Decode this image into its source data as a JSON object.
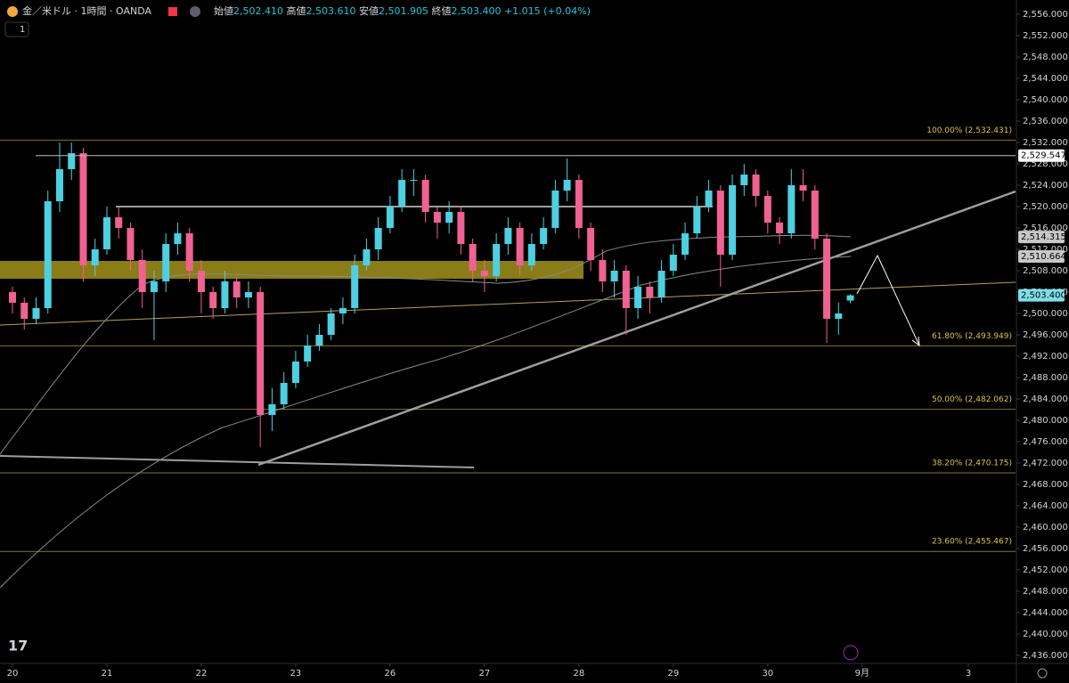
{
  "header": {
    "symbol": "金／米ドル · 1時間 · OANDA",
    "interval_box": "1",
    "open_label": "始値",
    "open": "2,502.410",
    "high_label": "高値",
    "high": "2,503.610",
    "low_label": "安値",
    "low": "2,501.905",
    "close_label": "終値",
    "close": "2,503.400",
    "change": "+1.015 (+0.04%)"
  },
  "chart_data": {
    "type": "candlestick",
    "up_color": "#4dd0e1",
    "down_color": "#f06292",
    "ylim": [
      2434.5,
      2558.67
    ],
    "xlim": [
      -1.0566,
      85
    ],
    "yticks": [
      {
        "value": 2556,
        "label": "2,556.000"
      },
      {
        "value": 2552,
        "label": "2,552.000"
      },
      {
        "value": 2548,
        "label": "2,548.000"
      },
      {
        "value": 2544,
        "label": "2,544.000"
      },
      {
        "value": 2540,
        "label": "2,540.000"
      },
      {
        "value": 2536,
        "label": "2,536.000"
      },
      {
        "value": 2532,
        "label": "2,532.000"
      },
      {
        "value": 2528,
        "label": "2,528.000"
      },
      {
        "value": 2524,
        "label": "2,524.000"
      },
      {
        "value": 2520,
        "label": "2,520.000"
      },
      {
        "value": 2516,
        "label": "2,516.000"
      },
      {
        "value": 2512,
        "label": "2,512.000"
      },
      {
        "value": 2508,
        "label": "2,508.000"
      },
      {
        "value": 2504,
        "label": "2,504.000"
      },
      {
        "value": 2500,
        "label": "2,500.000"
      },
      {
        "value": 2496,
        "label": "2,496.000"
      },
      {
        "value": 2492,
        "label": "2,492.000"
      },
      {
        "value": 2488,
        "label": "2,488.000"
      },
      {
        "value": 2484,
        "label": "2,484.000"
      },
      {
        "value": 2480,
        "label": "2,480.000"
      },
      {
        "value": 2476,
        "label": "2,476.000"
      },
      {
        "value": 2472,
        "label": "2,472.000"
      },
      {
        "value": 2468,
        "label": "2,468.000"
      },
      {
        "value": 2464,
        "label": "2,464.000"
      },
      {
        "value": 2460,
        "label": "2,460.000"
      },
      {
        "value": 2456,
        "label": "2,456.000"
      },
      {
        "value": 2452,
        "label": "2,452.000"
      },
      {
        "value": 2448,
        "label": "2,448.000"
      },
      {
        "value": 2444,
        "label": "2,444.000"
      },
      {
        "value": 2440,
        "label": "2,440.000"
      },
      {
        "value": 2436,
        "label": "2,436.000"
      }
    ],
    "xticks": [
      {
        "value": 0,
        "label": "20"
      },
      {
        "value": 8,
        "label": "21"
      },
      {
        "value": 16,
        "label": "22"
      },
      {
        "value": 24,
        "label": "23"
      },
      {
        "value": 32,
        "label": "26"
      },
      {
        "value": 40,
        "label": "27"
      },
      {
        "value": 48,
        "label": "28"
      },
      {
        "value": 56,
        "label": "29"
      },
      {
        "value": 64,
        "label": "30"
      },
      {
        "value": 72,
        "label": "9月"
      },
      {
        "value": 81,
        "label": "3"
      }
    ],
    "ohlc": [
      [
        2504,
        2505,
        2500,
        2502
      ],
      [
        2502,
        2503,
        2497,
        2499
      ],
      [
        2499,
        2503,
        2498,
        2501
      ],
      [
        2501,
        2523,
        2500,
        2521
      ],
      [
        2521,
        2532,
        2519,
        2527
      ],
      [
        2527,
        2532,
        2525,
        2530
      ],
      [
        2530,
        2531,
        2506,
        2509
      ],
      [
        2509,
        2514,
        2507,
        2512
      ],
      [
        2512,
        2520,
        2511,
        2518
      ],
      [
        2518,
        2520,
        2514,
        2516
      ],
      [
        2516,
        2517,
        2508,
        2510
      ],
      [
        2510,
        2512,
        2501,
        2504
      ],
      [
        2504,
        2508,
        2495,
        2506
      ],
      [
        2506,
        2515,
        2504,
        2513
      ],
      [
        2513,
        2517,
        2511,
        2515
      ],
      [
        2515,
        2516,
        2506,
        2508
      ],
      [
        2508,
        2510,
        2500,
        2504
      ],
      [
        2504,
        2505,
        2499,
        2501
      ],
      [
        2501,
        2508,
        2500,
        2506
      ],
      [
        2506,
        2507,
        2501,
        2503
      ],
      [
        2503,
        2506,
        2501,
        2504
      ],
      [
        2504,
        2505,
        2475,
        2481
      ],
      [
        2481,
        2486,
        2478,
        2483
      ],
      [
        2483,
        2489,
        2482,
        2487
      ],
      [
        2487,
        2493,
        2486,
        2491
      ],
      [
        2491,
        2496,
        2490,
        2494
      ],
      [
        2494,
        2498,
        2493,
        2496
      ],
      [
        2496,
        2501,
        2495,
        2500
      ],
      [
        2500,
        2503,
        2498,
        2501
      ],
      [
        2501,
        2511,
        2500,
        2509
      ],
      [
        2509,
        2514,
        2508,
        2512
      ],
      [
        2512,
        2518,
        2510,
        2516
      ],
      [
        2516,
        2522,
        2515,
        2520
      ],
      [
        2520,
        2527,
        2519,
        2525
      ],
      [
        2525,
        2527,
        2522,
        2525
      ],
      [
        2525,
        2526,
        2517,
        2519
      ],
      [
        2519,
        2520,
        2514,
        2517
      ],
      [
        2517,
        2521,
        2515,
        2519
      ],
      [
        2519,
        2520,
        2511,
        2513
      ],
      [
        2513,
        2514,
        2506,
        2508
      ],
      [
        2508,
        2510,
        2504,
        2507
      ],
      [
        2507,
        2515,
        2506,
        2513
      ],
      [
        2513,
        2518,
        2511,
        2516
      ],
      [
        2516,
        2517,
        2507,
        2509
      ],
      [
        2509,
        2515,
        2508,
        2513
      ],
      [
        2513,
        2518,
        2512,
        2516
      ],
      [
        2516,
        2525,
        2515,
        2523
      ],
      [
        2523,
        2529,
        2521,
        2525
      ],
      [
        2525,
        2526,
        2514,
        2516
      ],
      [
        2516,
        2517,
        2508,
        2510
      ],
      [
        2510,
        2512,
        2504,
        2506
      ],
      [
        2506,
        2510,
        2503,
        2508
      ],
      [
        2508,
        2509,
        2496,
        2501
      ],
      [
        2501,
        2507,
        2499,
        2505
      ],
      [
        2505,
        2506,
        2500,
        2503
      ],
      [
        2503,
        2510,
        2502,
        2508
      ],
      [
        2508,
        2513,
        2507,
        2511
      ],
      [
        2511,
        2517,
        2510,
        2515
      ],
      [
        2515,
        2522,
        2514,
        2520
      ],
      [
        2520,
        2525,
        2519,
        2523
      ],
      [
        2523,
        2524,
        2505,
        2511
      ],
      [
        2511,
        2526,
        2510,
        2524
      ],
      [
        2524,
        2528,
        2522,
        2526
      ],
      [
        2526,
        2527,
        2520,
        2522
      ],
      [
        2522,
        2523,
        2515,
        2517
      ],
      [
        2517,
        2518,
        2513,
        2515
      ],
      [
        2515,
        2527,
        2514,
        2524
      ],
      [
        2524,
        2527,
        2521,
        2523
      ],
      [
        2523,
        2524,
        2512,
        2514
      ],
      [
        2514,
        2515,
        2494.5,
        2499
      ],
      [
        2499,
        2502,
        2496,
        2500
      ],
      [
        2502.41,
        2503.61,
        2501.905,
        2503.4
      ]
    ],
    "fib_color": "#e0c24a",
    "fib_levels": [
      {
        "value": 2532.431,
        "label": "100.00% (2,532.431)"
      },
      {
        "value": 2493.949,
        "label": "61.80% (2,493.949)"
      },
      {
        "value": 2482.062,
        "label": "50.00% (2,482.062)"
      },
      {
        "value": 2470.175,
        "label": "38.20% (2,470.175)"
      },
      {
        "value": 2455.467,
        "label": "23.60% (2,455.467)"
      }
    ],
    "price_tags": [
      {
        "value": 2529.547,
        "label": "2,529.547",
        "color": "#ffffff"
      },
      {
        "value": 2514.315,
        "label": "2,514.315",
        "color": "#c8c8c8"
      },
      {
        "value": 2510.664,
        "label": "2,510.664",
        "color": "#c8c8c8"
      },
      {
        "value": 2503.4,
        "label": "2,503.400",
        "color": "#80deea"
      }
    ]
  }
}
